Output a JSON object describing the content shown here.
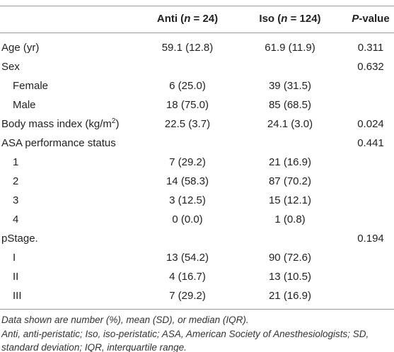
{
  "table": {
    "header": [
      [
        "Anti (",
        {
          "italic": "n"
        },
        " = 24)"
      ],
      [
        "Iso (",
        {
          "italic": "n"
        },
        " = 124)"
      ],
      [
        {
          "italic": "P"
        },
        "-value"
      ]
    ],
    "rows": [
      {
        "label": [
          "Age (yr)"
        ],
        "indent": false,
        "cells": [
          "59.1 (12.8)",
          "61.9 (11.9)",
          "0.311"
        ]
      },
      {
        "label": [
          "Sex"
        ],
        "indent": false,
        "cells": [
          null,
          null,
          "0.632"
        ]
      },
      {
        "label": [
          "Female"
        ],
        "indent": true,
        "cells": [
          "6 (25.0)",
          "39 (31.5)",
          null
        ]
      },
      {
        "label": [
          "Male"
        ],
        "indent": true,
        "cells": [
          "18 (75.0)",
          "85 (68.5)",
          null
        ]
      },
      {
        "label": [
          "Body mass index (kg/m",
          {
            "sup": "2"
          },
          ")"
        ],
        "indent": false,
        "cells": [
          "22.5 (3.7)",
          "24.1 (3.0)",
          "0.024"
        ]
      },
      {
        "label": [
          "ASA performance status"
        ],
        "indent": false,
        "cells": [
          null,
          null,
          "0.441"
        ]
      },
      {
        "label": [
          "1"
        ],
        "indent": true,
        "cells": [
          "7 (29.2)",
          "21 (16.9)",
          null
        ]
      },
      {
        "label": [
          "2"
        ],
        "indent": true,
        "cells": [
          "14 (58.3)",
          "87 (70.2)",
          null
        ]
      },
      {
        "label": [
          "3"
        ],
        "indent": true,
        "cells": [
          "3 (12.5)",
          "15 (12.1)",
          null
        ]
      },
      {
        "label": [
          "4"
        ],
        "indent": true,
        "cells": [
          "0 (0.0)",
          "1 (0.8)",
          null
        ]
      },
      {
        "label": [
          "pStage."
        ],
        "indent": false,
        "cells": [
          null,
          null,
          "0.194"
        ]
      },
      {
        "label": [
          "I"
        ],
        "indent": true,
        "cells": [
          "13 (54.2)",
          "90 (72.6)",
          null
        ]
      },
      {
        "label": [
          "II"
        ],
        "indent": true,
        "cells": [
          "4 (16.7)",
          "13 (10.5)",
          null
        ]
      },
      {
        "label": [
          "III"
        ],
        "indent": true,
        "cells": [
          "7 (29.2)",
          "21 (16.9)",
          null
        ]
      }
    ]
  },
  "notes": [
    "Data shown are number (%), mean (SD), or median (IQR).",
    "Anti, anti-peristatic; Iso, iso-peristatic; ASA, American Society of Anesthesiologists; SD, standard deviation; IQR, interquartile range."
  ]
}
